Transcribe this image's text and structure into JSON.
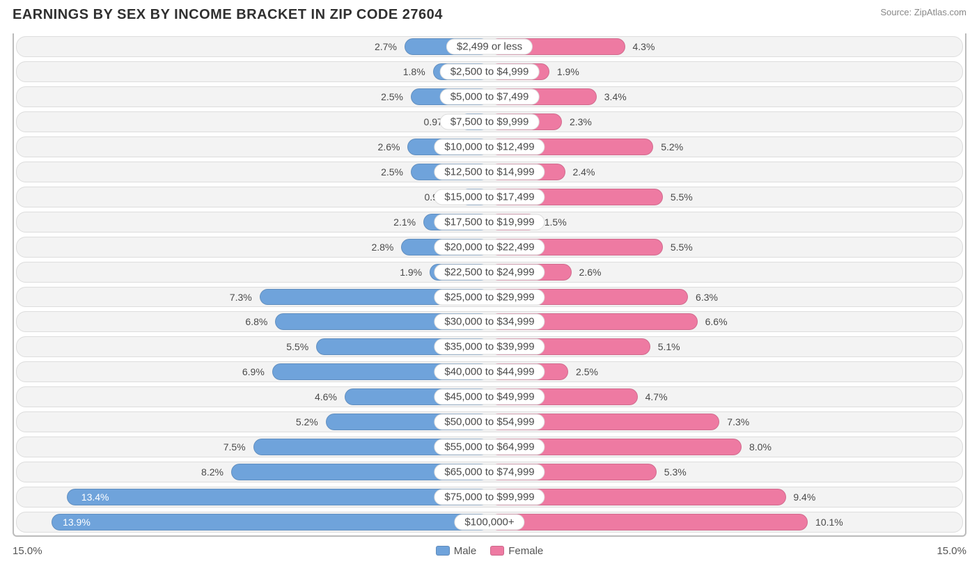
{
  "title": "EARNINGS BY SEX BY INCOME BRACKET IN ZIP CODE 27604",
  "source": "Source: ZipAtlas.com",
  "axis_max": 15.0,
  "axis_left_label": "15.0%",
  "axis_right_label": "15.0%",
  "label_half_width_pct": 11.0,
  "colors": {
    "male_fill": "#6fa3db",
    "male_edge": "#5a8ec7",
    "female_fill": "#ee7aa2",
    "female_edge": "#e06690",
    "track_bg": "#f3f3f3",
    "track_border": "#dddddd",
    "text": "#4a4a4a"
  },
  "legend": {
    "male": "Male",
    "female": "Female"
  },
  "rows": [
    {
      "bracket": "$2,499 or less",
      "male": 2.7,
      "female": 4.3,
      "male_label": "2.7%",
      "female_label": "4.3%"
    },
    {
      "bracket": "$2,500 to $4,999",
      "male": 1.8,
      "female": 1.9,
      "male_label": "1.8%",
      "female_label": "1.9%"
    },
    {
      "bracket": "$5,000 to $7,499",
      "male": 2.5,
      "female": 3.4,
      "male_label": "2.5%",
      "female_label": "3.4%"
    },
    {
      "bracket": "$7,500 to $9,999",
      "male": 0.97,
      "female": 2.3,
      "male_label": "0.97%",
      "female_label": "2.3%"
    },
    {
      "bracket": "$10,000 to $12,499",
      "male": 2.6,
      "female": 5.2,
      "male_label": "2.6%",
      "female_label": "5.2%"
    },
    {
      "bracket": "$12,500 to $14,999",
      "male": 2.5,
      "female": 2.4,
      "male_label": "2.5%",
      "female_label": "2.4%"
    },
    {
      "bracket": "$15,000 to $17,499",
      "male": 0.95,
      "female": 5.5,
      "male_label": "0.95%",
      "female_label": "5.5%"
    },
    {
      "bracket": "$17,500 to $19,999",
      "male": 2.1,
      "female": 1.5,
      "male_label": "2.1%",
      "female_label": "1.5%"
    },
    {
      "bracket": "$20,000 to $22,499",
      "male": 2.8,
      "female": 5.5,
      "male_label": "2.8%",
      "female_label": "5.5%"
    },
    {
      "bracket": "$22,500 to $24,999",
      "male": 1.9,
      "female": 2.6,
      "male_label": "1.9%",
      "female_label": "2.6%"
    },
    {
      "bracket": "$25,000 to $29,999",
      "male": 7.3,
      "female": 6.3,
      "male_label": "7.3%",
      "female_label": "6.3%"
    },
    {
      "bracket": "$30,000 to $34,999",
      "male": 6.8,
      "female": 6.6,
      "male_label": "6.8%",
      "female_label": "6.6%"
    },
    {
      "bracket": "$35,000 to $39,999",
      "male": 5.5,
      "female": 5.1,
      "male_label": "5.5%",
      "female_label": "5.1%"
    },
    {
      "bracket": "$40,000 to $44,999",
      "male": 6.9,
      "female": 2.5,
      "male_label": "6.9%",
      "female_label": "2.5%"
    },
    {
      "bracket": "$45,000 to $49,999",
      "male": 4.6,
      "female": 4.7,
      "male_label": "4.6%",
      "female_label": "4.7%"
    },
    {
      "bracket": "$50,000 to $54,999",
      "male": 5.2,
      "female": 7.3,
      "male_label": "5.2%",
      "female_label": "7.3%"
    },
    {
      "bracket": "$55,000 to $64,999",
      "male": 7.5,
      "female": 8.0,
      "male_label": "7.5%",
      "female_label": "8.0%"
    },
    {
      "bracket": "$65,000 to $74,999",
      "male": 8.2,
      "female": 5.3,
      "male_label": "8.2%",
      "female_label": "5.3%"
    },
    {
      "bracket": "$75,000 to $99,999",
      "male": 13.4,
      "female": 9.4,
      "male_label": "13.4%",
      "female_label": "9.4%"
    },
    {
      "bracket": "$100,000+",
      "male": 13.9,
      "female": 10.1,
      "male_label": "13.9%",
      "female_label": "10.1%"
    }
  ]
}
